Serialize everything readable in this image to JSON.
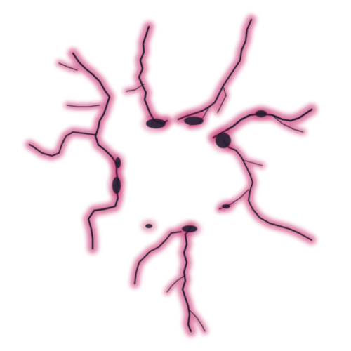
{
  "image": {
    "subject": "cracks",
    "background_color": "#ffffff",
    "crack_color": "#1a1a2e",
    "glow_color": "#c2185b"
  }
}
